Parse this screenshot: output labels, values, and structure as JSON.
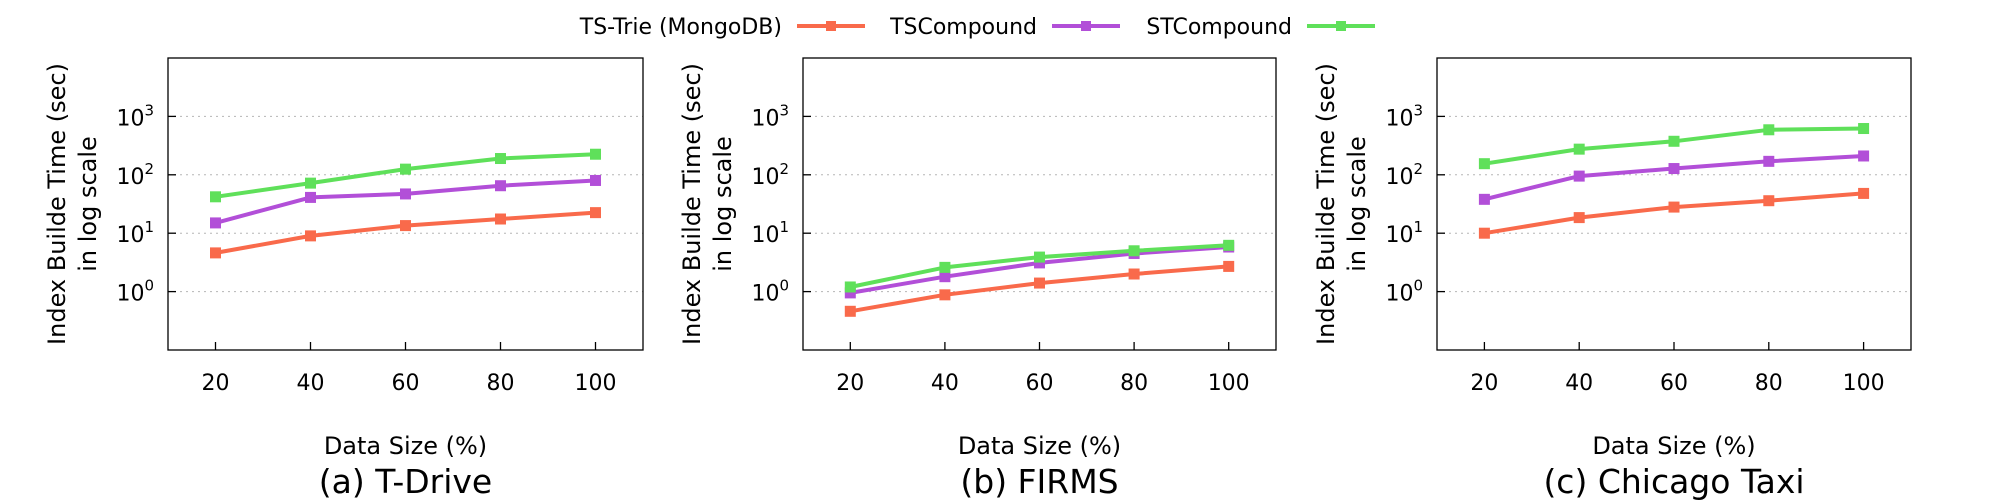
{
  "legend": [
    {
      "label": "TS-Trie (MongoDB)",
      "color": "#f96a4b"
    },
    {
      "label": "TSCompound",
      "color": "#b24fd8"
    },
    {
      "label": "STCompound",
      "color": "#5fe05a"
    }
  ],
  "chart_data": [
    {
      "type": "line",
      "title": "(a) T-Drive",
      "xlabel": "Data Size (%)",
      "ylabel": [
        "Index Builde Time (sec)",
        "in log scale"
      ],
      "x": [
        20,
        40,
        60,
        80,
        100
      ],
      "x_ticks": [
        "20",
        "40",
        "60",
        "80",
        "100"
      ],
      "y_scale": "log",
      "ylim": [
        0.1,
        10000
      ],
      "y_ticks": [
        {
          "value": 1,
          "base": "10",
          "exp": "0"
        },
        {
          "value": 10,
          "base": "10",
          "exp": "1"
        },
        {
          "value": 100,
          "base": "10",
          "exp": "2"
        },
        {
          "value": 1000,
          "base": "10",
          "exp": "3"
        }
      ],
      "grid": true,
      "series": [
        {
          "name": "TS-Trie (MongoDB)",
          "color": "#f96a4b",
          "values": [
            4.6,
            9.0,
            13.5,
            17.5,
            22.5
          ]
        },
        {
          "name": "TSCompound",
          "color": "#b24fd8",
          "values": [
            15,
            41,
            47,
            65,
            80
          ]
        },
        {
          "name": "STCompound",
          "color": "#5fe05a",
          "values": [
            42,
            72,
            125,
            190,
            225
          ]
        }
      ]
    },
    {
      "type": "line",
      "title": "(b) FIRMS",
      "xlabel": "Data Size (%)",
      "ylabel": [
        "Index Builde Time (sec)",
        "in log scale"
      ],
      "x": [
        20,
        40,
        60,
        80,
        100
      ],
      "x_ticks": [
        "20",
        "40",
        "60",
        "80",
        "100"
      ],
      "y_scale": "log",
      "ylim": [
        0.1,
        10000
      ],
      "y_ticks": [
        {
          "value": 1,
          "base": "10",
          "exp": "0"
        },
        {
          "value": 10,
          "base": "10",
          "exp": "1"
        },
        {
          "value": 100,
          "base": "10",
          "exp": "2"
        },
        {
          "value": 1000,
          "base": "10",
          "exp": "3"
        }
      ],
      "grid": true,
      "series": [
        {
          "name": "TS-Trie (MongoDB)",
          "color": "#f96a4b",
          "values": [
            0.46,
            0.88,
            1.4,
            2.0,
            2.7
          ]
        },
        {
          "name": "TSCompound",
          "color": "#b24fd8",
          "values": [
            0.95,
            1.8,
            3.1,
            4.5,
            5.8
          ]
        },
        {
          "name": "STCompound",
          "color": "#5fe05a",
          "values": [
            1.2,
            2.6,
            3.9,
            5.0,
            6.2
          ]
        }
      ]
    },
    {
      "type": "line",
      "title": "(c) Chicago Taxi",
      "xlabel": "Data Size (%)",
      "ylabel": [
        "Index Builde Time (sec)",
        "in log scale"
      ],
      "x": [
        20,
        40,
        60,
        80,
        100
      ],
      "x_ticks": [
        "20",
        "40",
        "60",
        "80",
        "100"
      ],
      "y_scale": "log",
      "ylim": [
        0.1,
        10000
      ],
      "y_ticks": [
        {
          "value": 1,
          "base": "10",
          "exp": "0"
        },
        {
          "value": 10,
          "base": "10",
          "exp": "1"
        },
        {
          "value": 100,
          "base": "10",
          "exp": "2"
        },
        {
          "value": 1000,
          "base": "10",
          "exp": "3"
        }
      ],
      "grid": true,
      "series": [
        {
          "name": "TS-Trie (MongoDB)",
          "color": "#f96a4b",
          "values": [
            10,
            18.5,
            28,
            36,
            48
          ]
        },
        {
          "name": "TSCompound",
          "color": "#b24fd8",
          "values": [
            38,
            95,
            128,
            170,
            210
          ]
        },
        {
          "name": "STCompound",
          "color": "#5fe05a",
          "values": [
            155,
            275,
            375,
            590,
            620
          ]
        }
      ]
    }
  ]
}
